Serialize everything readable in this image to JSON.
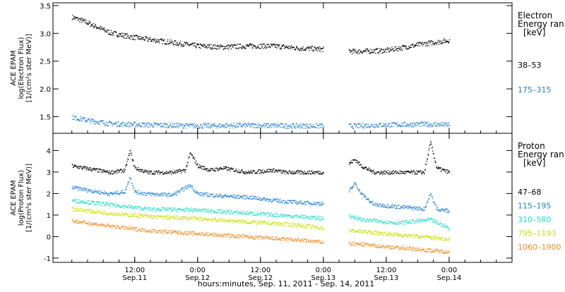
{
  "chart_data": [
    {
      "type": "scatter",
      "panel": "electron",
      "ylabel": [
        "ACE EPAM",
        "log(Electron Flux)",
        "[1/(cm²s ster MeV)]"
      ],
      "ylim": [
        1.2,
        3.55
      ],
      "yticks": [
        "1.5",
        "2.0",
        "2.5",
        "3.0",
        "3.5"
      ],
      "ytick_values": [
        1.5,
        2.0,
        2.5,
        3.0,
        3.5
      ],
      "legend_title": [
        "Electron",
        "Energy ran",
        "[keV]"
      ],
      "legend_placement": "right",
      "grid": false,
      "series": [
        {
          "name": "38–53",
          "color": "#000000",
          "x": [
            0,
            0.1,
            0.2,
            0.3,
            0.45,
            0.6,
            0.8,
            1.0,
            1.2,
            1.4,
            1.6,
            1.8,
            2.0,
            2.25,
            2.5,
            2.8,
            3.0
          ],
          "y": [
            3.3,
            3.22,
            3.12,
            3.02,
            2.95,
            2.9,
            2.84,
            2.78,
            2.76,
            2.78,
            2.78,
            2.74,
            2.72,
            2.68,
            2.7,
            2.82,
            2.88
          ]
        },
        {
          "name": "175–315",
          "color": "#1f7fd4",
          "x": [
            0,
            0.1,
            0.3,
            0.6,
            1.0,
            1.4,
            1.8,
            2.0,
            2.25,
            2.5,
            2.8,
            3.0
          ],
          "y": [
            1.5,
            1.45,
            1.38,
            1.36,
            1.34,
            1.35,
            1.34,
            1.34,
            1.34,
            1.36,
            1.37,
            1.36
          ]
        }
      ]
    },
    {
      "type": "scatter",
      "panel": "proton",
      "ylabel": [
        "ACE EPAM",
        "log(Proton Flux)",
        "[1/(cm²s ster MeV)]"
      ],
      "ylim": [
        -1.2,
        4.8
      ],
      "yticks": [
        "-1",
        "0",
        "1",
        "2",
        "3",
        "4"
      ],
      "ytick_values": [
        -1,
        0,
        1,
        2,
        3,
        4
      ],
      "legend_title": [
        "Proton",
        "Energy ran",
        "[keV]"
      ],
      "legend_placement": "right",
      "grid": false,
      "series": [
        {
          "name": "47–68",
          "color": "#000000",
          "x": [
            0,
            0.1,
            0.2,
            0.3,
            0.42,
            0.46,
            0.5,
            0.6,
            0.8,
            0.9,
            0.94,
            1.0,
            1.1,
            1.2,
            1.4,
            1.6,
            1.7,
            1.8,
            1.95,
            2.0,
            2.2,
            2.25,
            2.3,
            2.4,
            2.6,
            2.8,
            2.85,
            2.9,
            3.0
          ],
          "y": [
            3.3,
            3.2,
            3.1,
            3.0,
            3.1,
            4.0,
            3.2,
            3.0,
            3.0,
            3.1,
            3.9,
            3.3,
            3.1,
            3.2,
            3.0,
            3.1,
            3.0,
            3.0,
            3.0,
            3.0,
            3.4,
            3.6,
            3.3,
            3.0,
            3.0,
            3.0,
            4.4,
            3.2,
            3.0
          ]
        },
        {
          "name": "115–195",
          "color": "#1f7fd4",
          "x": [
            0,
            0.1,
            0.2,
            0.3,
            0.42,
            0.46,
            0.5,
            0.6,
            0.8,
            0.94,
            1.0,
            1.2,
            1.4,
            1.6,
            1.8,
            2.0,
            2.2,
            2.25,
            2.3,
            2.4,
            2.6,
            2.8,
            2.85,
            2.9,
            3.0
          ],
          "y": [
            2.3,
            2.2,
            2.1,
            2.0,
            2.1,
            2.8,
            2.1,
            2.0,
            1.95,
            2.4,
            2.0,
            1.9,
            1.85,
            1.7,
            1.6,
            1.55,
            2.1,
            2.5,
            2.0,
            1.5,
            1.4,
            1.3,
            2.0,
            1.3,
            1.2
          ]
        },
        {
          "name": "310–580",
          "color": "#1ee0c8",
          "x": [
            0,
            0.3,
            0.6,
            1.0,
            1.4,
            1.8,
            2.0,
            2.2,
            2.3,
            2.6,
            2.85,
            3.0
          ],
          "y": [
            1.7,
            1.5,
            1.3,
            1.25,
            1.1,
            0.95,
            0.85,
            1.0,
            0.8,
            0.65,
            0.8,
            0.4
          ]
        },
        {
          "name": "795–1193",
          "color": "#c8e000",
          "x": [
            0,
            0.3,
            0.6,
            1.0,
            1.4,
            1.8,
            2.0,
            2.2,
            2.6,
            3.0
          ],
          "y": [
            1.3,
            1.1,
            0.95,
            0.85,
            0.7,
            0.55,
            0.4,
            0.3,
            0.1,
            -0.1
          ]
        },
        {
          "name": "1060–1900",
          "color": "#f08c1e",
          "x": [
            0,
            0.3,
            0.6,
            1.0,
            1.4,
            1.8,
            2.0,
            2.2,
            2.6,
            3.0
          ],
          "y": [
            0.75,
            0.5,
            0.3,
            0.15,
            0.0,
            -0.15,
            -0.25,
            -0.3,
            -0.5,
            -0.7
          ]
        }
      ]
    }
  ],
  "x_axis": {
    "range_days": [
      -0.15,
      3.5
    ],
    "gap_days": [
      2.0,
      2.2
    ],
    "tick_values": [
      0.5,
      1.0,
      1.5,
      2.0,
      2.5,
      3.0
    ],
    "tick_labels": [
      [
        "12:00",
        "Sep.11"
      ],
      [
        "0:00",
        "Sep.12"
      ],
      [
        "12:00",
        "Sep.12"
      ],
      [
        "0:00",
        "Sep.13"
      ],
      [
        "12:00",
        "Sep.13"
      ],
      [
        "0:00",
        "Sep.14"
      ]
    ],
    "title": "hours:minutes, Sep. 11, 2011 - Sep. 14, 2011"
  }
}
